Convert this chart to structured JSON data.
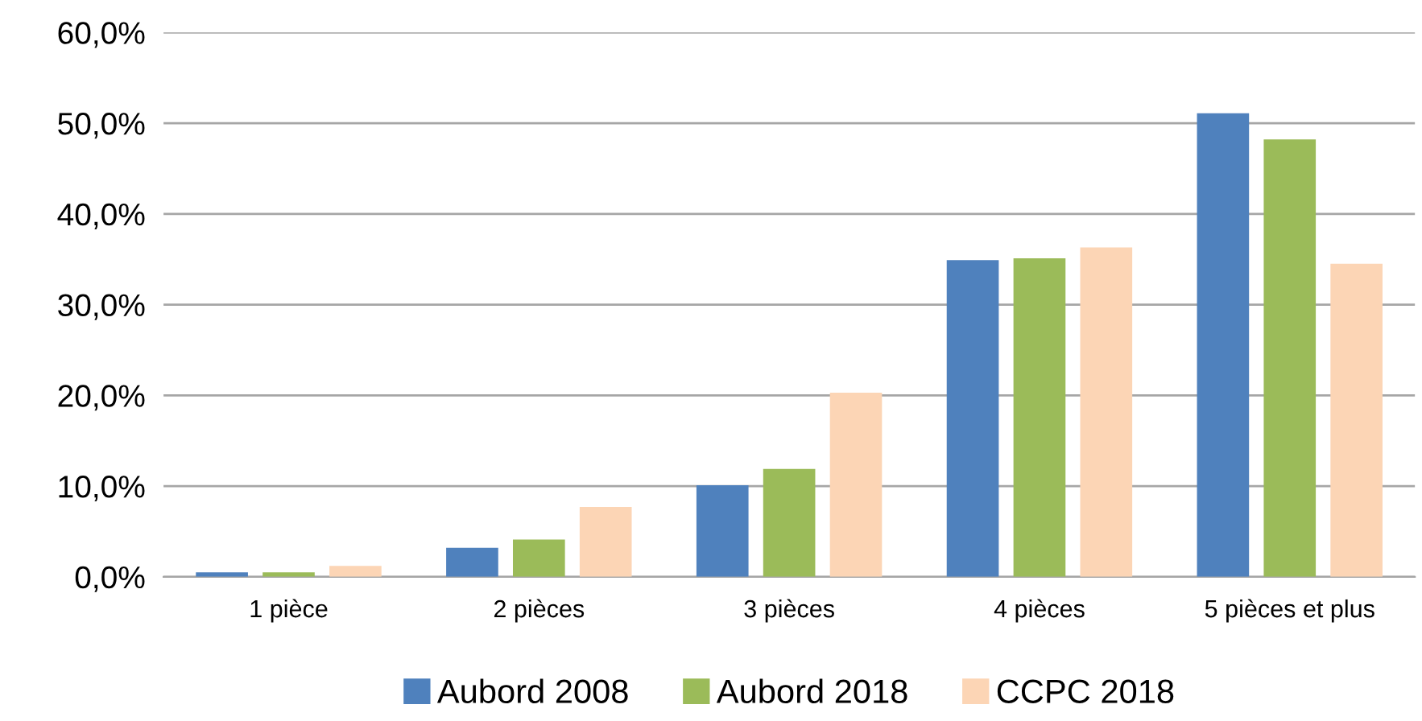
{
  "chart_data": {
    "type": "bar",
    "categories": [
      "1 pièce",
      "2 pièces",
      "3 pièces",
      "4 pièces",
      "5 pièces et plus"
    ],
    "series": [
      {
        "name": "Aubord 2008",
        "color": "#4f81bd",
        "values": [
          0.5,
          3.2,
          10.1,
          34.9,
          51.1
        ]
      },
      {
        "name": "Aubord 2018",
        "color": "#9bbb59",
        "values": [
          0.5,
          4.1,
          11.9,
          35.1,
          48.2
        ]
      },
      {
        "name": "CCPC 2018",
        "color": "#fcd5b5",
        "values": [
          1.2,
          7.7,
          20.3,
          36.3,
          34.5
        ]
      }
    ],
    "ylim": [
      0,
      60
    ],
    "yticks": [
      {
        "value": 0,
        "label": "0,0%"
      },
      {
        "value": 10,
        "label": "10,0%"
      },
      {
        "value": 20,
        "label": "20,0%"
      },
      {
        "value": 30,
        "label": "30,0%"
      },
      {
        "value": 40,
        "label": "40,0%"
      },
      {
        "value": 50,
        "label": "50,0%"
      },
      {
        "value": 60,
        "label": "60,0%"
      }
    ],
    "grid": "y",
    "legend": "bottom"
  }
}
